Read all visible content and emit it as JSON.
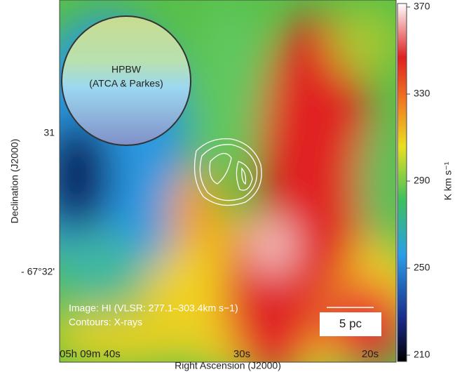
{
  "chart_data": {
    "type": "heatmap",
    "x_label": "Right Ascension (J2000)",
    "y_label": "Declination (J2000)",
    "x_tick_labels": [
      "05h 09m 40s",
      "30s",
      "20s"
    ],
    "y_tick_labels": [
      "31",
      "- 67°32'"
    ],
    "colorbar": {
      "label": "K km s⁻¹",
      "lim": [
        210,
        370
      ],
      "ticks": [
        210,
        250,
        290,
        330,
        370
      ]
    },
    "annotations": {
      "beam": "HPBW",
      "beam_sub": "(ATCA & Parkes)",
      "image": "Image: HI (VLSR: 277.1–303.4km s−1)",
      "contours": "Contours: X-rays",
      "scale": "5 pc"
    }
  }
}
